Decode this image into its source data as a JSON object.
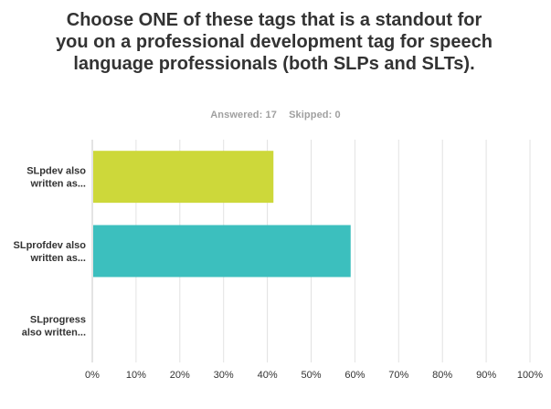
{
  "survey": {
    "question": "Choose ONE of these tags that is a standout for you on a professional development tag for speech language professionals (both SLPs and SLTs).",
    "answered": "Answered: 17",
    "skipped": "Skipped: 0"
  },
  "colors": {
    "series": [
      "#cdd83a",
      "#3cbfbe",
      "#f5a623"
    ],
    "grid": "#e2e2e2",
    "axis": "#c8c8c8"
  },
  "chart_data": {
    "type": "bar",
    "orientation": "horizontal",
    "categories": [
      [
        "SLpdev also",
        "written as..."
      ],
      [
        "SLprofdev also",
        "written as..."
      ],
      [
        "SLprogress",
        "also written..."
      ]
    ],
    "values": [
      41.18,
      58.82,
      0
    ],
    "xlim": [
      0,
      100
    ],
    "xticks": [
      "0%",
      "10%",
      "20%",
      "30%",
      "40%",
      "50%",
      "60%",
      "70%",
      "80%",
      "90%",
      "100%"
    ],
    "grid": true,
    "legend": "none",
    "xlabel": "",
    "ylabel": ""
  }
}
